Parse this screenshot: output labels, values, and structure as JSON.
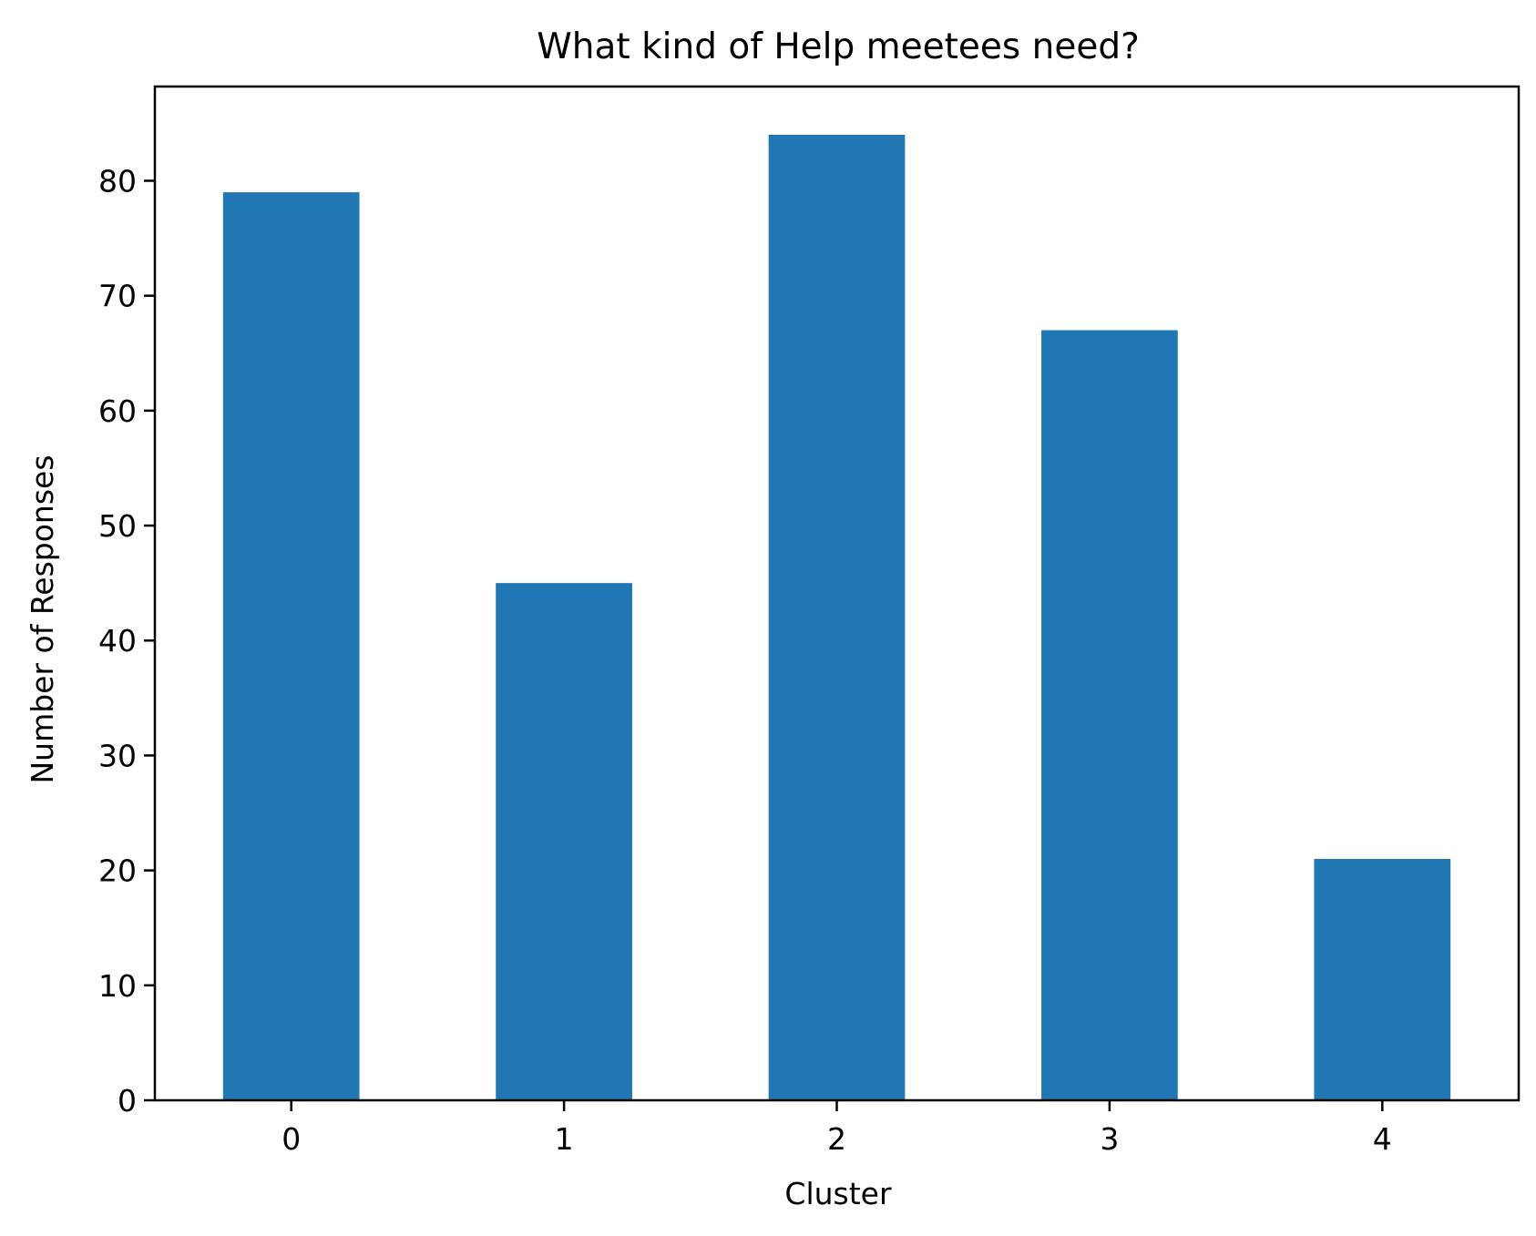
{
  "chart_data": {
    "type": "bar",
    "title": "What kind of Help meetees need?",
    "xlabel": "Cluster",
    "ylabel": "Number of Responses",
    "categories": [
      "0",
      "1",
      "2",
      "3",
      "4"
    ],
    "values": [
      79,
      45,
      84,
      67,
      21
    ],
    "ylim": [
      0,
      88.2
    ],
    "yticks": [
      0,
      10,
      20,
      30,
      40,
      50,
      60,
      70,
      80
    ],
    "bar_color": "#2077b4",
    "grid": false,
    "legend": "none"
  }
}
